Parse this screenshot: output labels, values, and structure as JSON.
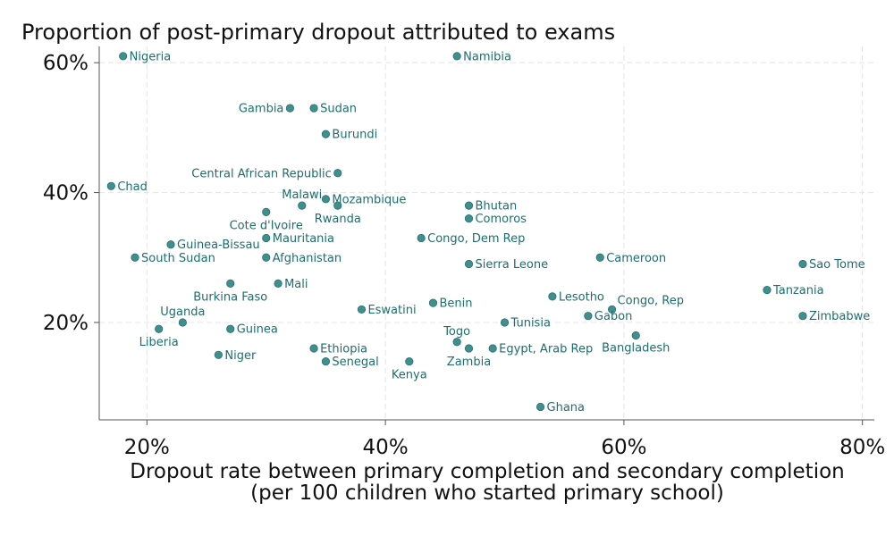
{
  "colors": {
    "point": "#3f8f8f",
    "label": "#1d6e6e",
    "grid": "#e4e4e4",
    "axis": "#555555"
  },
  "chart_data": {
    "type": "scatter",
    "title": "Proportion of post-primary dropout attributed to exams",
    "xlabel": [
      "Dropout rate between primary completion and secondary completion",
      "(per 100 children who started primary school)"
    ],
    "ylabel": "",
    "xlim": [
      16,
      81
    ],
    "ylim": [
      5,
      62.5
    ],
    "x_ticks": [
      20,
      40,
      60,
      80
    ],
    "x_tick_labels": [
      "20%",
      "40%",
      "60%",
      "80%"
    ],
    "y_ticks": [
      20,
      40,
      60
    ],
    "y_tick_labels": [
      "20%",
      "40%",
      "60%"
    ],
    "grid": true,
    "points": [
      {
        "label": "Nigeria",
        "x": 18,
        "y": 61,
        "pos": "right"
      },
      {
        "label": "Namibia",
        "x": 46,
        "y": 61,
        "pos": "right"
      },
      {
        "label": "Gambia",
        "x": 32,
        "y": 53,
        "pos": "left"
      },
      {
        "label": "Sudan",
        "x": 34,
        "y": 53,
        "pos": "right"
      },
      {
        "label": "Burundi",
        "x": 35,
        "y": 49,
        "pos": "right"
      },
      {
        "label": "Central African Republic",
        "x": 36,
        "y": 43,
        "pos": "left"
      },
      {
        "label": "Chad",
        "x": 17,
        "y": 41,
        "pos": "right"
      },
      {
        "label": "Malawi",
        "x": 33,
        "y": 38,
        "pos": "above"
      },
      {
        "label": "Mozambique",
        "x": 35,
        "y": 39,
        "pos": "right"
      },
      {
        "label": "Rwanda",
        "x": 36,
        "y": 38,
        "pos": "below"
      },
      {
        "label": "Cote d'Ivoire",
        "x": 30,
        "y": 37,
        "pos": "below"
      },
      {
        "label": "Bhutan",
        "x": 47,
        "y": 38,
        "pos": "right"
      },
      {
        "label": "Comoros",
        "x": 47,
        "y": 36,
        "pos": "right"
      },
      {
        "label": "Mauritania",
        "x": 30,
        "y": 33,
        "pos": "right"
      },
      {
        "label": "Congo, Dem Rep",
        "x": 43,
        "y": 33,
        "pos": "right"
      },
      {
        "label": "Guinea-Bissau",
        "x": 22,
        "y": 32,
        "pos": "right"
      },
      {
        "label": "South Sudan",
        "x": 19,
        "y": 30,
        "pos": "right"
      },
      {
        "label": "Afghanistan",
        "x": 30,
        "y": 30,
        "pos": "right"
      },
      {
        "label": "Cameroon",
        "x": 58,
        "y": 30,
        "pos": "right"
      },
      {
        "label": "Sierra Leone",
        "x": 47,
        "y": 29,
        "pos": "right"
      },
      {
        "label": "Sao Tome",
        "x": 75,
        "y": 29,
        "pos": "right"
      },
      {
        "label": "Burkina Faso",
        "x": 27,
        "y": 26,
        "pos": "below"
      },
      {
        "label": "Mali",
        "x": 31,
        "y": 26,
        "pos": "right"
      },
      {
        "label": "Tanzania",
        "x": 72,
        "y": 25,
        "pos": "right"
      },
      {
        "label": "Lesotho",
        "x": 54,
        "y": 24,
        "pos": "right"
      },
      {
        "label": "Benin",
        "x": 44,
        "y": 23,
        "pos": "right"
      },
      {
        "label": "Congo, Rep",
        "x": 59,
        "y": 22,
        "pos": "aboveright"
      },
      {
        "label": "Eswatini",
        "x": 38,
        "y": 22,
        "pos": "right"
      },
      {
        "label": "Gabon",
        "x": 57,
        "y": 21,
        "pos": "right"
      },
      {
        "label": "Zimbabwe",
        "x": 75,
        "y": 21,
        "pos": "right"
      },
      {
        "label": "Uganda",
        "x": 23,
        "y": 20,
        "pos": "above"
      },
      {
        "label": "Tunisia",
        "x": 50,
        "y": 20,
        "pos": "right"
      },
      {
        "label": "Liberia",
        "x": 21,
        "y": 19,
        "pos": "below"
      },
      {
        "label": "Guinea",
        "x": 27,
        "y": 19,
        "pos": "right"
      },
      {
        "label": "Bangladesh",
        "x": 61,
        "y": 18,
        "pos": "belowcenter"
      },
      {
        "label": "Togo",
        "x": 46,
        "y": 17,
        "pos": "above"
      },
      {
        "label": "Ethiopia",
        "x": 34,
        "y": 16,
        "pos": "right"
      },
      {
        "label": "Egypt, Arab Rep",
        "x": 49,
        "y": 16,
        "pos": "right"
      },
      {
        "label": "Zambia",
        "x": 47,
        "y": 16,
        "pos": "below"
      },
      {
        "label": "Niger",
        "x": 26,
        "y": 15,
        "pos": "right"
      },
      {
        "label": "Senegal",
        "x": 35,
        "y": 14,
        "pos": "right"
      },
      {
        "label": "Kenya",
        "x": 42,
        "y": 14,
        "pos": "below"
      },
      {
        "label": "Ghana",
        "x": 53,
        "y": 7,
        "pos": "right"
      }
    ]
  }
}
